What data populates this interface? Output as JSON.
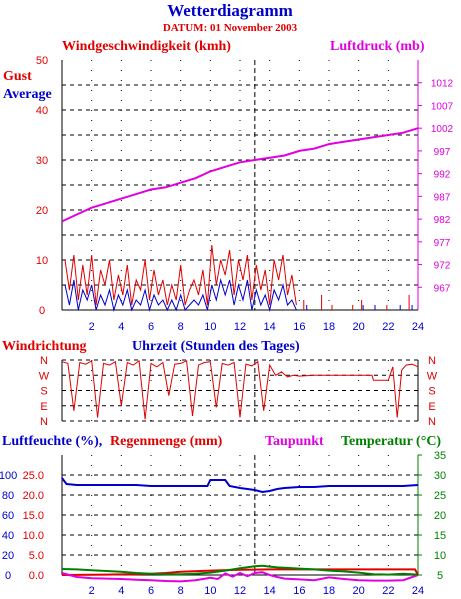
{
  "header": {
    "title": "Wetterdiagramm",
    "date": "DATUM: 01 November 2003"
  },
  "colors": {
    "red": "#e00000",
    "blue": "#0000cc",
    "magenta": "#e000e0",
    "green": "#008000",
    "grid": "#000000"
  },
  "chart_data": [
    {
      "type": "line",
      "title": "Windgeschwindigkeit (kmh)",
      "title_right": "Luftdruck (mb)",
      "legend": [
        "Gust",
        "Average"
      ],
      "x_ticks": [
        2,
        4,
        6,
        8,
        10,
        12,
        14,
        16,
        18,
        20,
        22,
        24
      ],
      "xlim": [
        0,
        24
      ],
      "y_left_ticks": [
        0,
        10,
        20,
        30,
        40,
        50
      ],
      "ylim_left": [
        0,
        50
      ],
      "y_right_ticks": [
        967,
        972,
        977,
        982,
        987,
        992,
        997,
        1002,
        1007,
        1012
      ],
      "ylim_right": [
        962,
        1017
      ],
      "series": [
        {
          "name": "Gust",
          "axis": "left",
          "color": "#e00000",
          "x": [
            0.2,
            0.5,
            0.8,
            1.1,
            1.4,
            1.7,
            2.0,
            2.3,
            2.6,
            2.9,
            3.2,
            3.5,
            3.8,
            4.1,
            4.4,
            4.7,
            5.0,
            5.3,
            5.6,
            5.9,
            6.2,
            6.5,
            6.8,
            7.1,
            7.4,
            7.7,
            8.0,
            8.3,
            8.6,
            8.9,
            9.2,
            9.5,
            9.8,
            10.1,
            10.4,
            10.7,
            11.0,
            11.3,
            11.6,
            11.9,
            12.2,
            12.5,
            12.8,
            13.1,
            13.4,
            13.7,
            14.0,
            14.3,
            14.6,
            14.9,
            15.2,
            15.5,
            15.8
          ],
          "y": [
            10,
            4,
            11,
            2,
            9,
            3,
            11,
            1,
            8,
            5,
            10,
            2,
            7,
            3,
            9,
            1,
            6,
            4,
            10,
            2,
            8,
            3,
            6,
            1,
            5,
            2,
            9,
            1,
            4,
            6,
            3,
            8,
            1,
            13,
            5,
            10,
            7,
            12,
            3,
            10,
            6,
            11,
            2,
            9,
            4,
            8,
            1,
            10,
            6,
            11,
            3,
            7,
            1
          ]
        },
        {
          "name": "Average",
          "axis": "left",
          "color": "#0000cc",
          "x": [
            0.2,
            0.5,
            0.8,
            1.1,
            1.4,
            1.7,
            2.0,
            2.3,
            2.6,
            2.9,
            3.2,
            3.5,
            3.8,
            4.1,
            4.4,
            4.7,
            5.0,
            5.3,
            5.6,
            5.9,
            6.2,
            6.5,
            6.8,
            7.1,
            7.4,
            7.7,
            8.0,
            8.3,
            8.6,
            8.9,
            9.2,
            9.5,
            9.8,
            10.1,
            10.4,
            10.7,
            11.0,
            11.3,
            11.6,
            11.9,
            12.2,
            12.5,
            12.8,
            13.1,
            13.4,
            13.7,
            14.0,
            14.3,
            14.6,
            14.9,
            15.2,
            15.5,
            15.8
          ],
          "y": [
            5,
            1,
            6,
            0,
            4,
            2,
            5,
            0,
            3,
            1,
            4,
            0,
            3,
            1,
            4,
            0,
            2,
            1,
            4,
            0,
            3,
            1,
            2,
            0,
            2,
            0,
            3,
            0,
            1,
            2,
            1,
            3,
            0,
            5,
            2,
            6,
            3,
            6,
            1,
            5,
            2,
            6,
            0,
            4,
            1,
            3,
            0,
            4,
            2,
            5,
            1,
            2,
            0
          ]
        },
        {
          "name": "Luftdruck",
          "axis": "right",
          "color": "#e000e0",
          "x": [
            0,
            1,
            2,
            3,
            4,
            5,
            6,
            7,
            8,
            9,
            10,
            11,
            12,
            13,
            14,
            15,
            16,
            17,
            18,
            19,
            20,
            21,
            22,
            23,
            24
          ],
          "y": [
            981.5,
            983,
            984.5,
            985.5,
            986.5,
            987.5,
            988.5,
            989,
            990,
            991,
            992.5,
            993.5,
            994.5,
            995,
            995.5,
            996,
            997,
            997.5,
            998.5,
            999,
            999.5,
            1000,
            1000.5,
            1001,
            1002
          ]
        }
      ],
      "sparse_gusts": {
        "x": [
          16.3,
          17.5,
          18.2,
          19.6,
          20.2,
          21.9,
          23.4
        ],
        "y": [
          2,
          3,
          1,
          1,
          2,
          1,
          3
        ]
      },
      "sparse_avg": {
        "x": [
          16.5,
          20.3,
          21.1,
          22.8,
          23.6
        ],
        "y": [
          1,
          1,
          1,
          1,
          1
        ]
      }
    },
    {
      "type": "line",
      "title": "Windrichtung",
      "xlabel": "Uhrzeit (Stunden des Tages)",
      "y_ticks": [
        "N",
        "W",
        "S",
        "E",
        "N"
      ],
      "xlim": [
        0,
        24
      ],
      "series": [
        {
          "name": "Windrichtung",
          "color": "#e00000",
          "x": [
            0,
            0.4,
            0.8,
            1.2,
            1.6,
            2.0,
            2.4,
            2.8,
            3.2,
            3.6,
            4.0,
            4.4,
            4.8,
            5.2,
            5.6,
            6.0,
            6.4,
            6.8,
            7.2,
            7.6,
            8.0,
            8.4,
            8.8,
            9.2,
            9.6,
            10.0,
            10.4,
            10.8,
            11.2,
            11.6,
            12.0,
            12.4,
            12.8,
            13.2,
            13.6,
            14.0,
            14.4,
            14.8,
            15.2,
            15.6,
            16.0,
            17.0,
            18.0,
            19.0,
            20.0,
            20.9,
            21.0,
            21.8,
            22.0,
            22.3,
            22.6,
            22.9,
            23.2,
            23.6,
            24
          ],
          "y": [
            350,
            340,
            60,
            345,
            335,
            355,
            20,
            340,
            330,
            350,
            90,
            345,
            330,
            355,
            10,
            340,
            320,
            345,
            150,
            335,
            340,
            355,
            30,
            330,
            345,
            350,
            80,
            340,
            330,
            345,
            20,
            335,
            325,
            350,
            60,
            330,
            270,
            290,
            260,
            270,
            265,
            270,
            270,
            270,
            270,
            270,
            240,
            240,
            240,
            320,
            20,
            300,
            330,
            335,
            320
          ]
        }
      ]
    },
    {
      "type": "line",
      "titles": [
        "Luftfeuchte (%),",
        "Regenmenge (mm)",
        "Taupunkt",
        "Temperatur (°C)"
      ],
      "y_left_ticks": [
        0,
        20,
        40,
        60,
        80,
        100
      ],
      "y_left2_ticks": [
        "0.0",
        "5.0",
        "10.0",
        "15.0",
        "20.0",
        "25.0"
      ],
      "y_right_ticks": [
        5,
        10,
        15,
        20,
        25,
        30,
        35
      ],
      "ylim_right": [
        5,
        35
      ],
      "xlim": [
        0,
        24
      ],
      "series": [
        {
          "name": "Luftfeuchte",
          "color": "#0000cc",
          "x": [
            0,
            0.3,
            1,
            2,
            3,
            4,
            5,
            6,
            7,
            8,
            9,
            9.8,
            10.0,
            11.0,
            11.3,
            12,
            13,
            13.5,
            14,
            14.5,
            15,
            16,
            17,
            18,
            19,
            20,
            21,
            22,
            23,
            24
          ],
          "y": [
            97,
            91,
            90,
            90,
            90,
            90,
            90,
            89,
            89,
            89,
            89,
            89,
            95,
            95,
            89,
            87,
            85,
            83,
            84,
            86,
            87,
            88,
            88,
            89,
            89,
            89,
            89,
            89,
            89,
            90
          ]
        },
        {
          "name": "Regenmenge",
          "color": "#e00000",
          "x": [
            0,
            3,
            5,
            6,
            7,
            8,
            10,
            12,
            14,
            16,
            18,
            20,
            22,
            23.8,
            24
          ],
          "y": [
            0,
            0.1,
            0.2,
            0.3,
            0.5,
            0.8,
            1.1,
            1.3,
            1.4,
            1.4,
            1.4,
            1.4,
            1.4,
            1.4,
            0
          ]
        },
        {
          "name": "Taupunkt",
          "color": "#e000e0",
          "x": [
            0,
            1,
            2,
            3,
            4,
            5,
            6,
            7,
            8,
            9,
            10,
            10.5,
            11,
            11.5,
            12,
            12.5,
            13,
            13.5,
            14,
            14.5,
            15,
            16,
            17,
            18,
            19,
            20,
            21,
            22,
            23,
            24
          ],
          "y": [
            5.5,
            4.5,
            4.2,
            4.1,
            4.0,
            3.8,
            3.7,
            3.5,
            3.4,
            3.7,
            4.3,
            4.0,
            5.4,
            4.6,
            5.5,
            4.7,
            5.5,
            5.7,
            5.0,
            4.5,
            4.1,
            3.9,
            3.7,
            4.4,
            4.0,
            3.7,
            3.6,
            3.6,
            3.7,
            5.0
          ]
        },
        {
          "name": "Temperatur",
          "color": "#008000",
          "x": [
            0,
            1,
            2,
            3,
            4,
            5,
            6,
            7,
            8,
            9,
            10,
            11,
            12,
            13,
            13.5,
            14,
            14.5,
            15,
            16,
            17,
            18,
            19,
            20,
            21,
            22,
            23,
            24
          ],
          "y": [
            6.5,
            6.4,
            6.2,
            6.0,
            5.8,
            5.5,
            5.3,
            5.2,
            5.2,
            5.3,
            5.6,
            6.1,
            6.7,
            7.2,
            7.3,
            7.1,
            6.9,
            6.8,
            6.6,
            6.4,
            6.1,
            5.9,
            5.6,
            5.2,
            5.1,
            5.3,
            5.1
          ]
        }
      ]
    }
  ]
}
